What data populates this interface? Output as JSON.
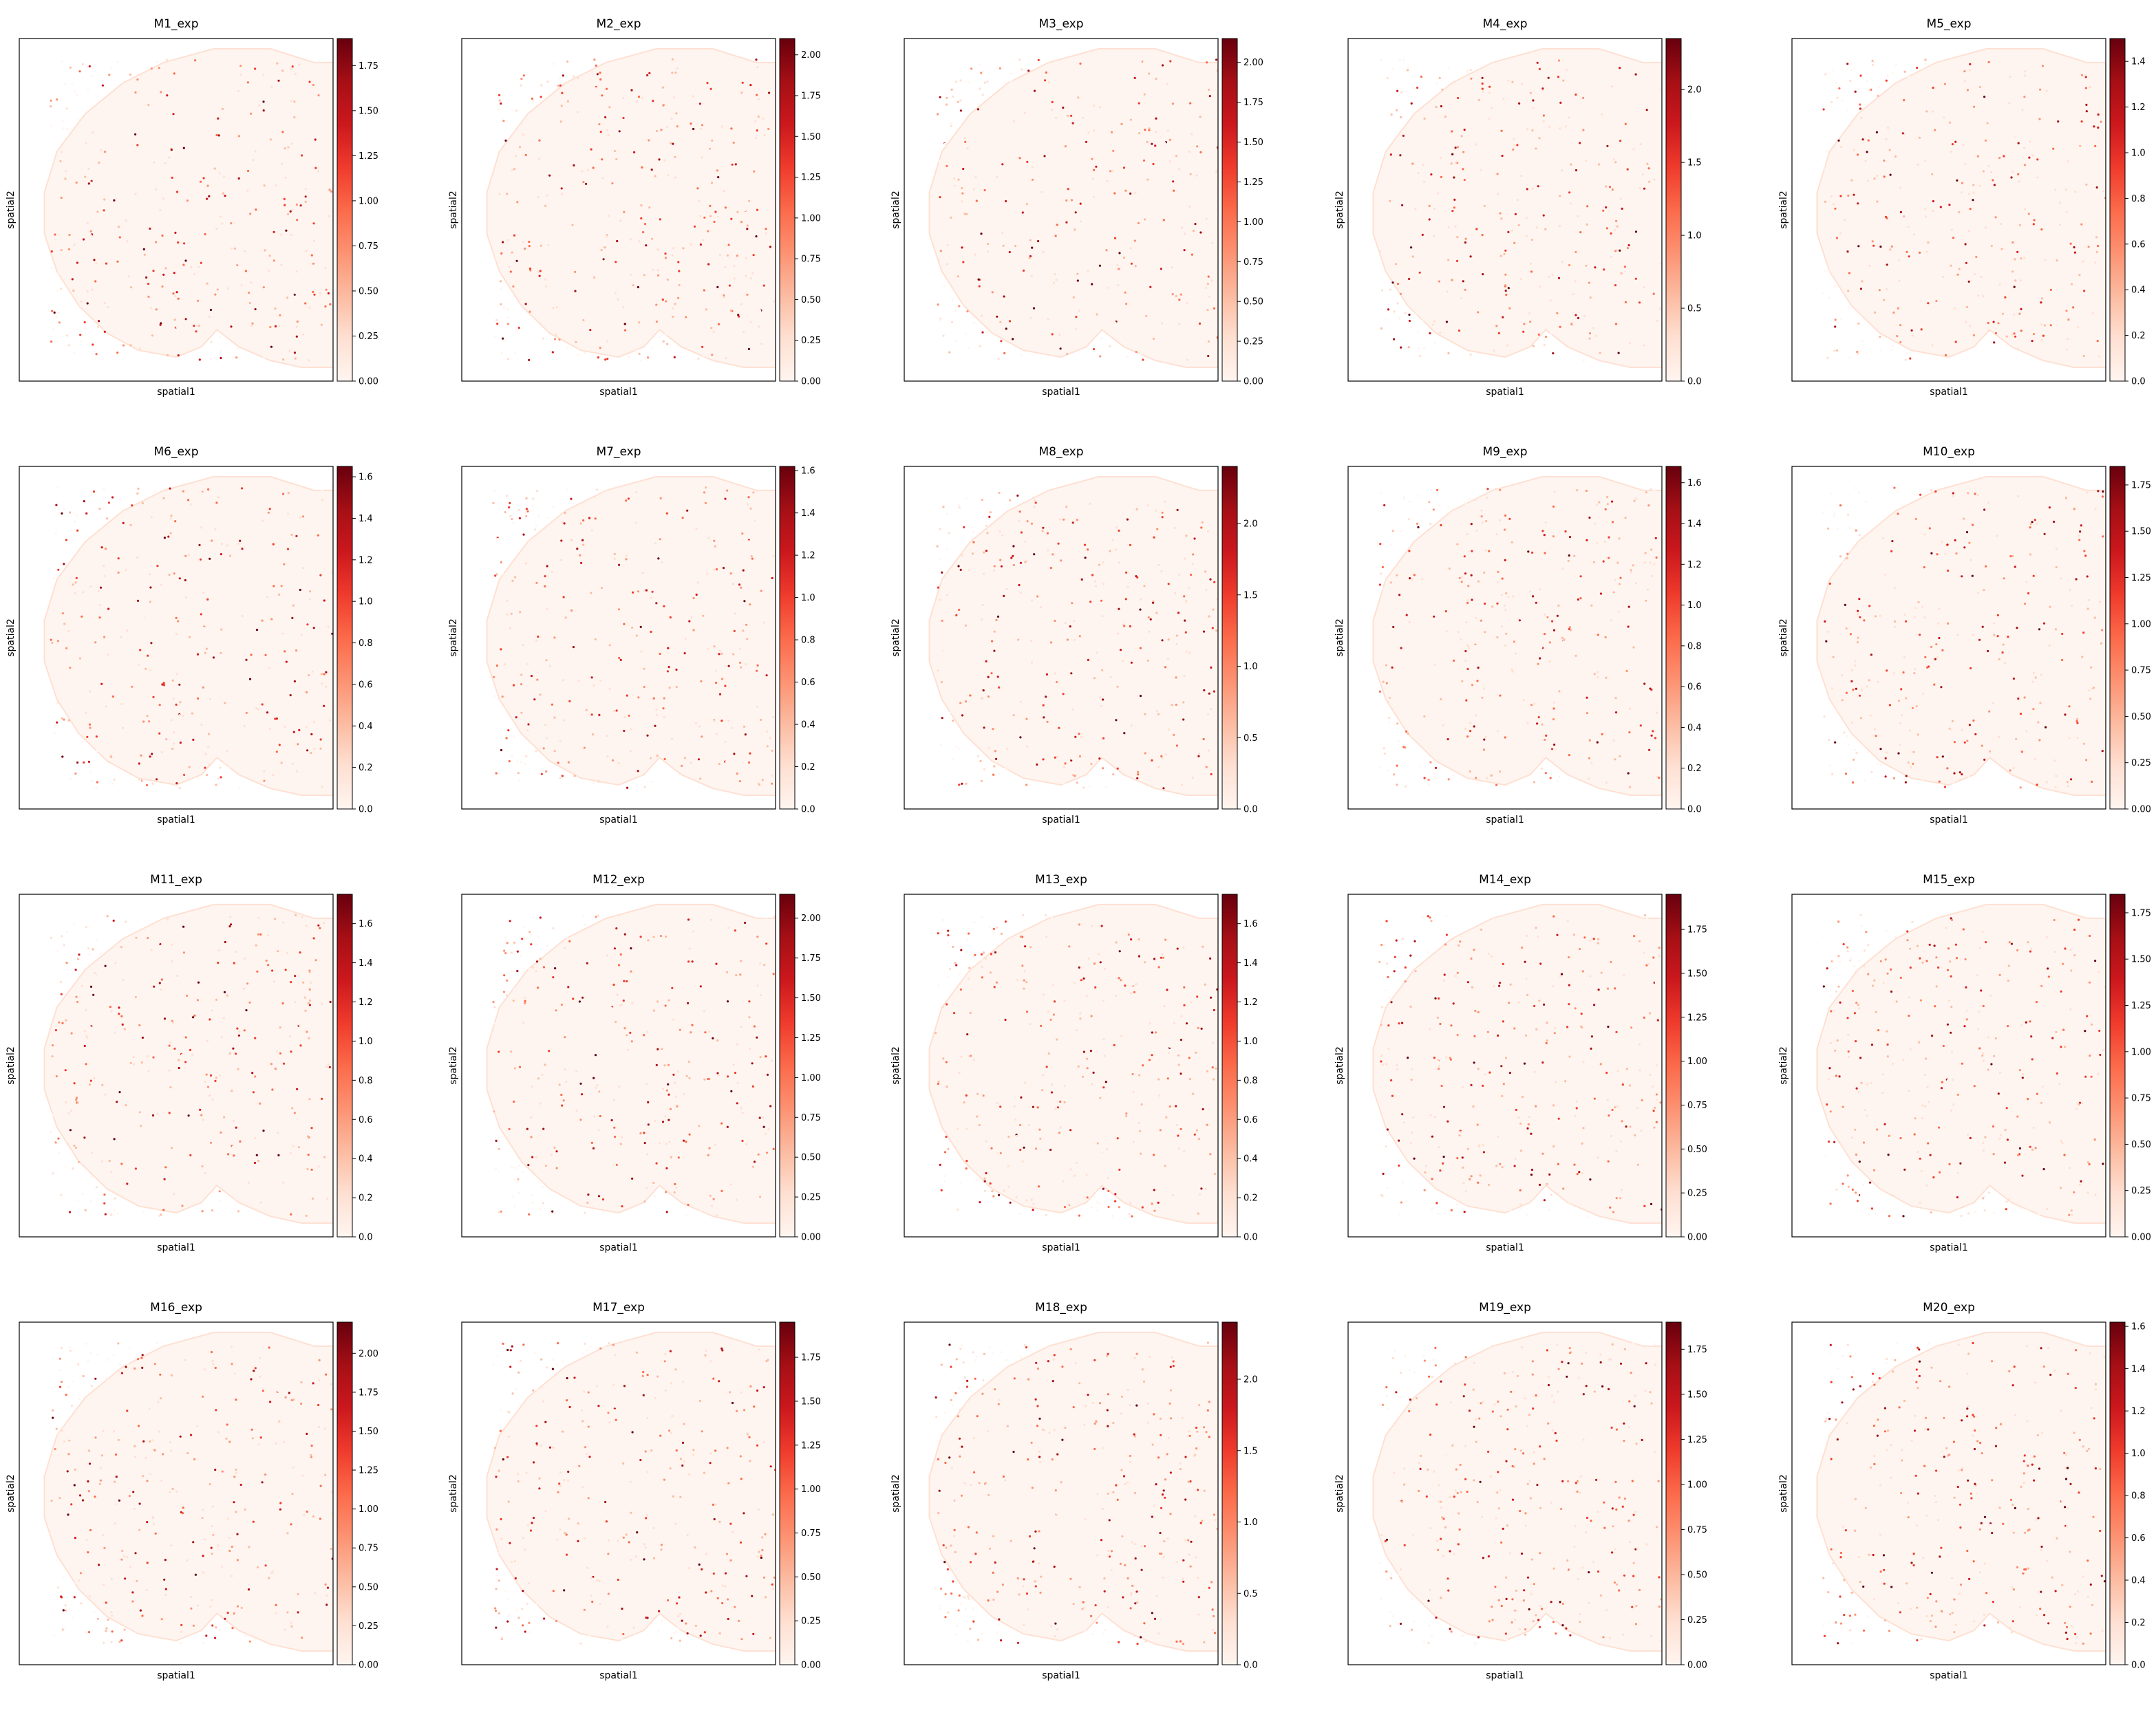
{
  "xlabel": "spatial1",
  "ylabel": "spatial2",
  "colormap": [
    "#fff5f0",
    "#fee0d2",
    "#fcbba1",
    "#fc9272",
    "#fb6a4a",
    "#ef3b2c",
    "#cb181d",
    "#a50f15",
    "#67000d"
  ],
  "chart_data": [
    {
      "type": "scatter",
      "title": "M1_exp",
      "xlabel": "spatial1",
      "ylabel": "spatial2",
      "colorbar_range": [
        0,
        1.9
      ],
      "colorbar_ticks": [
        0,
        0.25,
        0.5,
        0.75,
        1.0,
        1.25,
        1.5,
        1.75
      ],
      "tick_decimals": 2,
      "colormap": "Reds"
    },
    {
      "type": "scatter",
      "title": "M2_exp",
      "xlabel": "spatial1",
      "ylabel": "spatial2",
      "colorbar_range": [
        0,
        2.1
      ],
      "colorbar_ticks": [
        0,
        0.25,
        0.5,
        0.75,
        1.0,
        1.25,
        1.5,
        1.75,
        2.0
      ],
      "tick_decimals": 2,
      "colormap": "Reds"
    },
    {
      "type": "scatter",
      "title": "M3_exp",
      "xlabel": "spatial1",
      "ylabel": "spatial2",
      "colorbar_range": [
        0,
        2.15
      ],
      "colorbar_ticks": [
        0,
        0.25,
        0.5,
        0.75,
        1.0,
        1.25,
        1.5,
        1.75,
        2.0
      ],
      "tick_decimals": 2,
      "colormap": "Reds"
    },
    {
      "type": "scatter",
      "title": "M4_exp",
      "xlabel": "spatial1",
      "ylabel": "spatial2",
      "colorbar_range": [
        0,
        2.35
      ],
      "colorbar_ticks": [
        0,
        0.5,
        1.0,
        1.5,
        2.0
      ],
      "tick_decimals": 1,
      "colormap": "Reds"
    },
    {
      "type": "scatter",
      "title": "M5_exp",
      "xlabel": "spatial1",
      "ylabel": "spatial2",
      "colorbar_range": [
        0,
        1.5
      ],
      "colorbar_ticks": [
        0,
        0.2,
        0.4,
        0.6,
        0.8,
        1.0,
        1.2,
        1.4
      ],
      "tick_decimals": 1,
      "colormap": "Reds"
    },
    {
      "type": "scatter",
      "title": "M6_exp",
      "xlabel": "spatial1",
      "ylabel": "spatial2",
      "colorbar_range": [
        0,
        1.65
      ],
      "colorbar_ticks": [
        0,
        0.2,
        0.4,
        0.6,
        0.8,
        1.0,
        1.2,
        1.4,
        1.6
      ],
      "tick_decimals": 1,
      "colormap": "Reds"
    },
    {
      "type": "scatter",
      "title": "M7_exp",
      "xlabel": "spatial1",
      "ylabel": "spatial2",
      "colorbar_range": [
        0,
        1.62
      ],
      "colorbar_ticks": [
        0,
        0.2,
        0.4,
        0.6,
        0.8,
        1.0,
        1.2,
        1.4,
        1.6
      ],
      "tick_decimals": 1,
      "colormap": "Reds"
    },
    {
      "type": "scatter",
      "title": "M8_exp",
      "xlabel": "spatial1",
      "ylabel": "spatial2",
      "colorbar_range": [
        0,
        2.4
      ],
      "colorbar_ticks": [
        0,
        0.5,
        1.0,
        1.5,
        2.0
      ],
      "tick_decimals": 1,
      "colormap": "Reds"
    },
    {
      "type": "scatter",
      "title": "M9_exp",
      "xlabel": "spatial1",
      "ylabel": "spatial2",
      "colorbar_range": [
        0,
        1.68
      ],
      "colorbar_ticks": [
        0,
        0.2,
        0.4,
        0.6,
        0.8,
        1.0,
        1.2,
        1.4,
        1.6
      ],
      "tick_decimals": 1,
      "colormap": "Reds"
    },
    {
      "type": "scatter",
      "title": "M10_exp",
      "xlabel": "spatial1",
      "ylabel": "spatial2",
      "colorbar_range": [
        0,
        1.85
      ],
      "colorbar_ticks": [
        0,
        0.25,
        0.5,
        0.75,
        1.0,
        1.25,
        1.5,
        1.75
      ],
      "tick_decimals": 2,
      "colormap": "Reds"
    },
    {
      "type": "scatter",
      "title": "M11_exp",
      "xlabel": "spatial1",
      "ylabel": "spatial2",
      "colorbar_range": [
        0,
        1.75
      ],
      "colorbar_ticks": [
        0,
        0.2,
        0.4,
        0.6,
        0.8,
        1.0,
        1.2,
        1.4,
        1.6
      ],
      "tick_decimals": 1,
      "colormap": "Reds"
    },
    {
      "type": "scatter",
      "title": "M12_exp",
      "xlabel": "spatial1",
      "ylabel": "spatial2",
      "colorbar_range": [
        0,
        2.15
      ],
      "colorbar_ticks": [
        0,
        0.25,
        0.5,
        0.75,
        1.0,
        1.25,
        1.5,
        1.75,
        2.0
      ],
      "tick_decimals": 2,
      "colormap": "Reds"
    },
    {
      "type": "scatter",
      "title": "M13_exp",
      "xlabel": "spatial1",
      "ylabel": "spatial2",
      "colorbar_range": [
        0,
        1.75
      ],
      "colorbar_ticks": [
        0,
        0.2,
        0.4,
        0.6,
        0.8,
        1.0,
        1.2,
        1.4,
        1.6
      ],
      "tick_decimals": 1,
      "colormap": "Reds"
    },
    {
      "type": "scatter",
      "title": "M14_exp",
      "xlabel": "spatial1",
      "ylabel": "spatial2",
      "colorbar_range": [
        0,
        1.95
      ],
      "colorbar_ticks": [
        0,
        0.25,
        0.5,
        0.75,
        1.0,
        1.25,
        1.5,
        1.75
      ],
      "tick_decimals": 2,
      "colormap": "Reds"
    },
    {
      "type": "scatter",
      "title": "M15_exp",
      "xlabel": "spatial1",
      "ylabel": "spatial2",
      "colorbar_range": [
        0,
        1.85
      ],
      "colorbar_ticks": [
        0,
        0.25,
        0.5,
        0.75,
        1.0,
        1.25,
        1.5,
        1.75
      ],
      "tick_decimals": 2,
      "colormap": "Reds"
    },
    {
      "type": "scatter",
      "title": "M16_exp",
      "xlabel": "spatial1",
      "ylabel": "spatial2",
      "colorbar_range": [
        0,
        2.2
      ],
      "colorbar_ticks": [
        0,
        0.25,
        0.5,
        0.75,
        1.0,
        1.25,
        1.5,
        1.75,
        2.0
      ],
      "tick_decimals": 2,
      "colormap": "Reds"
    },
    {
      "type": "scatter",
      "title": "M17_exp",
      "xlabel": "spatial1",
      "ylabel": "spatial2",
      "colorbar_range": [
        0,
        1.95
      ],
      "colorbar_ticks": [
        0,
        0.25,
        0.5,
        0.75,
        1.0,
        1.25,
        1.5,
        1.75
      ],
      "tick_decimals": 2,
      "colormap": "Reds"
    },
    {
      "type": "scatter",
      "title": "M18_exp",
      "xlabel": "spatial1",
      "ylabel": "spatial2",
      "colorbar_range": [
        0,
        2.4
      ],
      "colorbar_ticks": [
        0,
        0.5,
        1.0,
        1.5,
        2.0
      ],
      "tick_decimals": 1,
      "colormap": "Reds"
    },
    {
      "type": "scatter",
      "title": "M19_exp",
      "xlabel": "spatial1",
      "ylabel": "spatial2",
      "colorbar_range": [
        0,
        1.9
      ],
      "colorbar_ticks": [
        0,
        0.25,
        0.5,
        0.75,
        1.0,
        1.25,
        1.5,
        1.75
      ],
      "tick_decimals": 2,
      "colormap": "Reds"
    },
    {
      "type": "scatter",
      "title": "M20_exp",
      "xlabel": "spatial1",
      "ylabel": "spatial2",
      "colorbar_range": [
        0,
        1.62
      ],
      "colorbar_ticks": [
        0,
        0.2,
        0.4,
        0.6,
        0.8,
        1.0,
        1.2,
        1.4,
        1.6
      ],
      "tick_decimals": 1,
      "colormap": "Reds"
    }
  ]
}
